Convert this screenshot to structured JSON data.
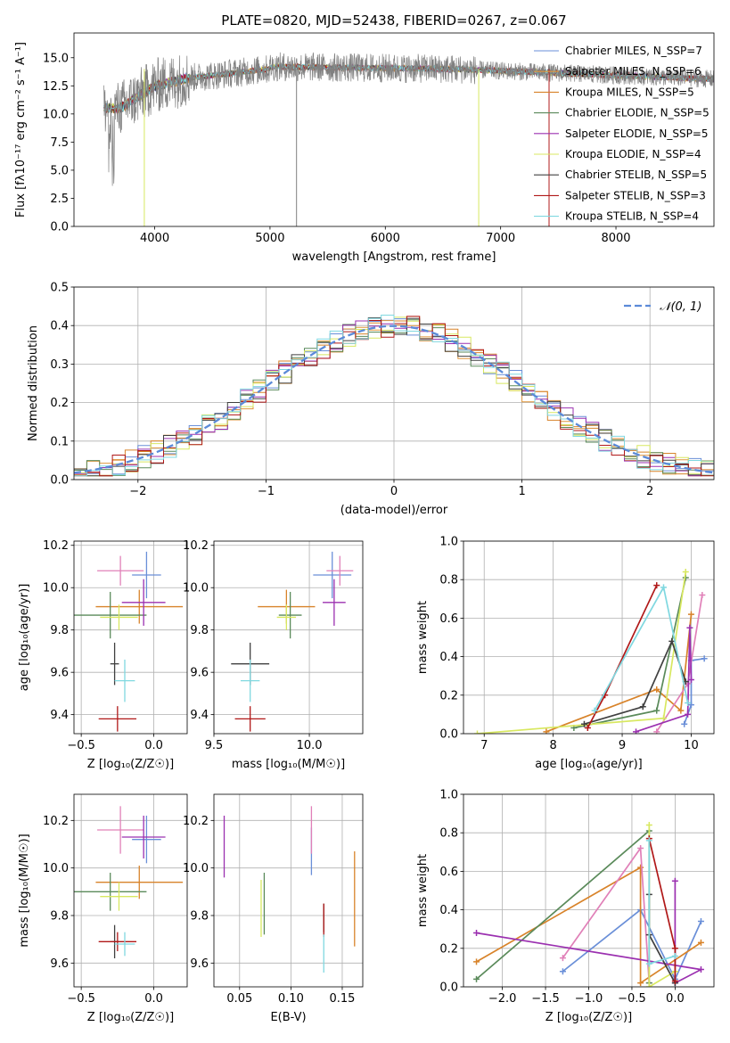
{
  "chart_data": [
    {
      "type": "line",
      "title": "PLATE=0820, MJD=52438, FIBERID=0267, z=0.067",
      "xlabel": "wavelength [Angstrom, rest frame]",
      "ylabel": "Flux [fλ10⁻¹⁷ erg cm⁻² s⁻¹ A⁻¹]",
      "xlim": [
        3300,
        8850
      ],
      "ylim": [
        0,
        17.2
      ],
      "xticks": [
        "4000",
        "5000",
        "6000",
        "7000",
        "8000"
      ],
      "yticks": [
        "0.0",
        "2.5",
        "5.0",
        "7.5",
        "10.0",
        "12.5",
        "15.0"
      ],
      "series": [
        {
          "name": "Chabrier MILES, N_SSP=7",
          "color": "#6a8fd8"
        },
        {
          "name": "Salpeter MILES, N_SSP=6",
          "color": "#e0963c"
        },
        {
          "name": "Kroupa MILES, N_SSP=5",
          "color": "#d8832a"
        },
        {
          "name": "Chabrier ELODIE, N_SSP=5",
          "color": "#5a8a5a"
        },
        {
          "name": "Salpeter ELODIE, N_SSP=5",
          "color": "#9b30b0"
        },
        {
          "name": "Kroupa ELODIE, N_SSP=4",
          "color": "#d8e860"
        },
        {
          "name": "Chabrier STELIB, N_SSP=5",
          "color": "#404040"
        },
        {
          "name": "Salpeter STELIB, N_SSP=3",
          "color": "#b01818"
        },
        {
          "name": "Kroupa STELIB, N_SSP=4",
          "color": "#80d8e0"
        }
      ],
      "legend": "right"
    },
    {
      "type": "bar",
      "xlabel": "(data-model)/error",
      "ylabel": "Normed distribution",
      "xlim": [
        -2.5,
        2.5
      ],
      "ylim": [
        0,
        0.5
      ],
      "xticks": [
        "−2",
        "−1",
        "0",
        "1",
        "2"
      ],
      "yticks": [
        "0.0",
        "0.1",
        "0.2",
        "0.3",
        "0.4",
        "0.5"
      ],
      "bin_width": 0.1,
      "series": [
        {
          "name": "𝒩(0, 1)",
          "type": "normal",
          "mean": 0,
          "sd": 1,
          "color": "#5b8ad8"
        }
      ],
      "legend": "top-right",
      "grid": true
    },
    {
      "type": "scatter",
      "xlabel": "Z [log₁₀(Z/Z☉)]",
      "ylabel": "age  [log₁₀(age/yr)]",
      "xlim": [
        -0.55,
        0.23
      ],
      "ylim": [
        9.31,
        10.22
      ],
      "xticks": [
        "−0.5",
        "0.0"
      ],
      "yticks": [
        "9.4",
        "9.6",
        "9.8",
        "10.0",
        "10.2"
      ],
      "points": [
        {
          "x": -0.05,
          "y": 10.06,
          "xerr": 0.1,
          "yerr": 0.11,
          "color": "#6a8fd8"
        },
        {
          "x": -0.1,
          "y": 9.91,
          "xerr": 0.3,
          "yerr": 0.08,
          "color": "#d8832a"
        },
        {
          "x": -0.23,
          "y": 10.08,
          "xerr": 0.16,
          "yerr": 0.07,
          "color": "#e080b8"
        },
        {
          "x": -0.3,
          "y": 9.87,
          "xerr": 0.25,
          "yerr": 0.11,
          "color": "#5a8a5a"
        },
        {
          "x": -0.07,
          "y": 9.93,
          "xerr": 0.15,
          "yerr": 0.11,
          "color": "#9b30b0"
        },
        {
          "x": -0.24,
          "y": 9.86,
          "xerr": 0.13,
          "yerr": 0.06,
          "color": "#d8e860"
        },
        {
          "x": -0.27,
          "y": 9.64,
          "xerr": 0.03,
          "yerr": 0.1,
          "color": "#404040"
        },
        {
          "x": -0.25,
          "y": 9.38,
          "xerr": 0.13,
          "yerr": 0.06,
          "color": "#b01818"
        },
        {
          "x": -0.2,
          "y": 9.56,
          "xerr": 0.07,
          "yerr": 0.1,
          "color": "#80d8e0"
        }
      ],
      "grid": true
    },
    {
      "type": "scatter",
      "xlabel": "mass [log₁₀(M/M☉)]",
      "ylabel": "",
      "xlim": [
        9.5,
        10.28
      ],
      "ylim": [
        9.31,
        10.22
      ],
      "xticks": [
        "9.5",
        "10.0"
      ],
      "yticks": [
        "9.4",
        "9.6",
        "9.8",
        "10.0",
        "10.2"
      ],
      "points": [
        {
          "x": 10.12,
          "y": 10.06,
          "xerr": 0.1,
          "yerr": 0.11,
          "color": "#6a8fd8"
        },
        {
          "x": 9.88,
          "y": 9.91,
          "xerr": 0.15,
          "yerr": 0.08,
          "color": "#d8832a"
        },
        {
          "x": 10.16,
          "y": 10.08,
          "xerr": 0.07,
          "yerr": 0.07,
          "color": "#e080b8"
        },
        {
          "x": 9.9,
          "y": 9.87,
          "xerr": 0.06,
          "yerr": 0.11,
          "color": "#5a8a5a"
        },
        {
          "x": 10.13,
          "y": 9.93,
          "xerr": 0.06,
          "yerr": 0.11,
          "color": "#9b30b0"
        },
        {
          "x": 9.88,
          "y": 9.86,
          "xerr": 0.05,
          "yerr": 0.06,
          "color": "#d8e860"
        },
        {
          "x": 9.69,
          "y": 9.64,
          "xerr": 0.1,
          "yerr": 0.1,
          "color": "#404040"
        },
        {
          "x": 9.69,
          "y": 9.38,
          "xerr": 0.08,
          "yerr": 0.06,
          "color": "#b01818"
        },
        {
          "x": 9.69,
          "y": 9.56,
          "xerr": 0.05,
          "yerr": 0.1,
          "color": "#80d8e0"
        }
      ],
      "grid": true
    },
    {
      "type": "line",
      "xlabel": "age  [log₁₀(age/yr)]",
      "ylabel": "mass weight",
      "xlim": [
        6.7,
        10.33
      ],
      "ylim": [
        0,
        1
      ],
      "xticks": [
        "7",
        "8",
        "9",
        "10"
      ],
      "yticks": [
        "0.0",
        "0.2",
        "0.4",
        "0.6",
        "0.8",
        "1.0"
      ],
      "series": [
        {
          "color": "#6a8fd8",
          "x": [
            9.9,
            10.0,
            10.0,
            10.19
          ],
          "y": [
            0.05,
            0.15,
            0.38,
            0.39
          ]
        },
        {
          "color": "#d8832a",
          "x": [
            7.9,
            9.5,
            9.85,
            10.0
          ],
          "y": [
            0.01,
            0.23,
            0.12,
            0.62
          ]
        },
        {
          "color": "#e080b8",
          "x": [
            9.5,
            9.95,
            10.16
          ],
          "y": [
            0.01,
            0.26,
            0.72
          ]
        },
        {
          "color": "#5a8a5a",
          "x": [
            8.3,
            9.5,
            9.92
          ],
          "y": [
            0.03,
            0.12,
            0.81
          ]
        },
        {
          "color": "#9b30b0",
          "x": [
            9.2,
            9.95,
            9.98,
            10.0
          ],
          "y": [
            0.01,
            0.1,
            0.55,
            0.28
          ]
        },
        {
          "color": "#d8e860",
          "x": [
            6.9,
            9.6,
            9.92
          ],
          "y": [
            0.0,
            0.08,
            0.84
          ]
        },
        {
          "color": "#404040",
          "x": [
            8.45,
            9.3,
            9.72,
            9.92
          ],
          "y": [
            0.05,
            0.14,
            0.48,
            0.27
          ]
        },
        {
          "color": "#b01818",
          "x": [
            8.5,
            8.75,
            9.5
          ],
          "y": [
            0.03,
            0.2,
            0.77
          ]
        },
        {
          "color": "#80d8e0",
          "x": [
            8.6,
            9.6,
            9.95
          ],
          "y": [
            0.12,
            0.76,
            0.16
          ]
        }
      ],
      "grid": true
    },
    {
      "type": "scatter",
      "xlabel": "Z [log₁₀(Z/Z☉)]",
      "ylabel": "mass [log₁₀(M/M☉)]",
      "xlim": [
        -0.55,
        0.23
      ],
      "ylim": [
        9.5,
        10.31
      ],
      "xticks": [
        "−0.5",
        "0.0"
      ],
      "yticks": [
        "9.6",
        "9.8",
        "10.0",
        "10.2"
      ],
      "points": [
        {
          "x": -0.05,
          "y": 10.12,
          "xerr": 0.1,
          "yerr": 0.1,
          "color": "#6a8fd8"
        },
        {
          "x": -0.1,
          "y": 9.94,
          "xerr": 0.3,
          "yerr": 0.07,
          "color": "#d8832a"
        },
        {
          "x": -0.23,
          "y": 10.16,
          "xerr": 0.16,
          "yerr": 0.1,
          "color": "#e080b8"
        },
        {
          "x": -0.3,
          "y": 9.9,
          "xerr": 0.25,
          "yerr": 0.08,
          "color": "#5a8a5a"
        },
        {
          "x": -0.07,
          "y": 10.13,
          "xerr": 0.15,
          "yerr": 0.09,
          "color": "#9b30b0"
        },
        {
          "x": -0.24,
          "y": 9.88,
          "xerr": 0.13,
          "yerr": 0.06,
          "color": "#d8e860"
        },
        {
          "x": -0.27,
          "y": 9.69,
          "xerr": 0.03,
          "yerr": 0.07,
          "color": "#404040"
        },
        {
          "x": -0.25,
          "y": 9.69,
          "xerr": 0.13,
          "yerr": 0.04,
          "color": "#b01818"
        },
        {
          "x": -0.2,
          "y": 9.68,
          "xerr": 0.07,
          "yerr": 0.05,
          "color": "#80d8e0"
        }
      ],
      "grid": true
    },
    {
      "type": "scatter",
      "xlabel": "E(B-V)",
      "ylabel": "",
      "xlim": [
        0.025,
        0.17
      ],
      "ylim": [
        9.5,
        10.31
      ],
      "xticks": [
        "0.05",
        "0.10",
        "0.15"
      ],
      "yticks": [
        "9.6",
        "9.8",
        "10.0",
        "10.2"
      ],
      "points": [
        {
          "x": 0.12,
          "y": 10.07,
          "yerr": 0.1,
          "color": "#6a8fd8"
        },
        {
          "x": 0.162,
          "y": 9.87,
          "yerr": 0.2,
          "color": "#d8832a"
        },
        {
          "x": 0.12,
          "y": 10.16,
          "yerr": 0.1,
          "color": "#e080b8"
        },
        {
          "x": 0.074,
          "y": 9.85,
          "yerr": 0.13,
          "color": "#5a8a5a"
        },
        {
          "x": 0.035,
          "y": 10.09,
          "yerr": 0.13,
          "color": "#9b30b0"
        },
        {
          "x": 0.071,
          "y": 9.83,
          "yerr": 0.12,
          "color": "#d8e860"
        },
        {
          "x": 0.132,
          "y": 9.79,
          "yerr": 0.06,
          "color": "#404040"
        },
        {
          "x": 0.132,
          "y": 9.78,
          "yerr": 0.07,
          "color": "#b01818"
        },
        {
          "x": 0.132,
          "y": 9.64,
          "yerr": 0.08,
          "color": "#80d8e0"
        }
      ],
      "grid": true
    },
    {
      "type": "line",
      "xlabel": "Z [log₁₀(Z/Z☉)]",
      "ylabel": "mass weight",
      "xlim": [
        -2.45,
        0.45
      ],
      "ylim": [
        0,
        1
      ],
      "xticks": [
        "−2.0",
        "−1.5",
        "−1.0",
        "−0.5",
        "0.0"
      ],
      "yticks": [
        "0.0",
        "0.2",
        "0.4",
        "0.6",
        "0.8",
        "1.0"
      ],
      "series": [
        {
          "color": "#6a8fd8",
          "x": [
            -1.3,
            -0.4,
            0.0,
            0.3
          ],
          "y": [
            0.08,
            0.4,
            0.04,
            0.34
          ]
        },
        {
          "color": "#d8832a",
          "x": [
            -2.3,
            -0.4,
            -0.4,
            0.3
          ],
          "y": [
            0.13,
            0.62,
            0.02,
            0.23
          ]
        },
        {
          "color": "#e080b8",
          "x": [
            -1.3,
            -0.4,
            -0.3
          ],
          "y": [
            0.15,
            0.72,
            0.02
          ]
        },
        {
          "color": "#5a8a5a",
          "x": [
            -2.3,
            -0.3,
            -0.3
          ],
          "y": [
            0.04,
            0.81,
            0.02
          ]
        },
        {
          "color": "#9b30b0",
          "x": [
            -2.3,
            0.3,
            0.0,
            0.0
          ],
          "y": [
            0.28,
            0.09,
            0.02,
            0.55
          ]
        },
        {
          "color": "#d8e860",
          "x": [
            -0.3,
            -0.3,
            0.0
          ],
          "y": [
            0.84,
            0.0,
            0.08
          ]
        },
        {
          "color": "#404040",
          "x": [
            -0.3,
            -0.3,
            0.0
          ],
          "y": [
            0.48,
            0.27,
            0.02
          ]
        },
        {
          "color": "#b01818",
          "x": [
            -0.3,
            0.0,
            0.0
          ],
          "y": [
            0.77,
            0.2,
            0.03
          ]
        },
        {
          "color": "#80d8e0",
          "x": [
            -0.3,
            -0.3,
            0.0
          ],
          "y": [
            0.76,
            0.12,
            0.16
          ]
        }
      ],
      "grid": true
    }
  ]
}
